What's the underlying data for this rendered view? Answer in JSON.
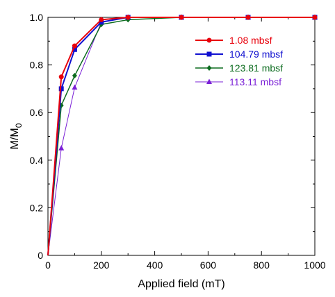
{
  "chart_data": {
    "type": "line",
    "xlabel": "Applied field (mT)",
    "ylabel": "M/M",
    "ylabel_subscript": "0",
    "xlim": [
      0,
      1000
    ],
    "ylim": [
      0,
      1.0
    ],
    "xticks": [
      0,
      200,
      400,
      600,
      800,
      1000
    ],
    "yticks": [
      0,
      0.2,
      0.4,
      0.6,
      0.8,
      1.0
    ],
    "xtick_labels": [
      "0",
      "200",
      "400",
      "600",
      "800",
      "1000"
    ],
    "ytick_labels": [
      "0",
      "0.2",
      "0.4",
      "0.6",
      "0.8",
      "1.0"
    ],
    "grid": false,
    "legend_position": "top-right",
    "series": [
      {
        "name": "1.08 mbsf",
        "color": "#e8000b",
        "marker": "circle",
        "stroke_width": 2,
        "points": [
          [
            0,
            0
          ],
          [
            50,
            0.75
          ],
          [
            100,
            0.88
          ],
          [
            200,
            0.99
          ],
          [
            300,
            1.0
          ],
          [
            500,
            1.0
          ],
          [
            750,
            1.0
          ],
          [
            1000,
            1.0
          ]
        ]
      },
      {
        "name": "104.79 mbsf",
        "color": "#1010d0",
        "marker": "square",
        "stroke_width": 2,
        "points": [
          [
            0,
            0
          ],
          [
            50,
            0.7
          ],
          [
            100,
            0.865
          ],
          [
            200,
            0.98
          ],
          [
            300,
            1.0
          ],
          [
            500,
            1.0
          ],
          [
            750,
            1.0
          ],
          [
            1000,
            1.0
          ]
        ]
      },
      {
        "name": "123.81 mbsf",
        "color": "#0b6b1e",
        "marker": "diamond",
        "stroke_width": 1.5,
        "points": [
          [
            0,
            0
          ],
          [
            50,
            0.63
          ],
          [
            100,
            0.755
          ],
          [
            200,
            0.97
          ],
          [
            300,
            0.99
          ],
          [
            500,
            1.0
          ],
          [
            750,
            1.0
          ],
          [
            1000,
            1.0
          ]
        ]
      },
      {
        "name": "113.11 mbsf",
        "color": "#7a1fd6",
        "marker": "triangle",
        "stroke_width": 1,
        "points": [
          [
            0,
            0
          ],
          [
            50,
            0.45
          ],
          [
            100,
            0.705
          ],
          [
            200,
            0.98
          ],
          [
            300,
            1.0
          ],
          [
            500,
            1.0
          ],
          [
            750,
            1.0
          ],
          [
            1000,
            1.0
          ]
        ]
      }
    ]
  }
}
